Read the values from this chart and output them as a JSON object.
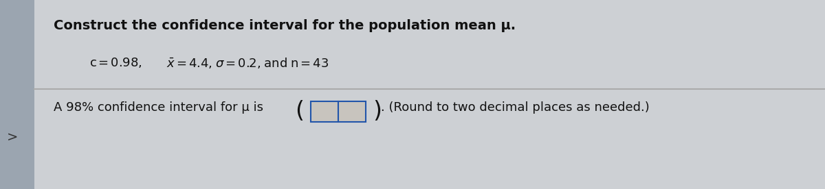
{
  "title": "Construct the confidence interval for the population mean μ.",
  "line1_part1": "c = 0.98, ",
  "line1_part2": "$\\bar{x}$ = 4.4, σ = 0.2, and n = 43",
  "line2_prefix": "A 98% confidence interval for μ is",
  "line2_suffix": ". (Round to two decimal places as needed.)",
  "bg_color": "#cdd0d4",
  "left_panel_color": "#9ba5b0",
  "text_color": "#111111",
  "title_fontsize": 14,
  "body_fontsize": 13,
  "box_color": "#c8c4be",
  "box_border_color": "#2255aa",
  "divider_color": "#aaaaaa",
  "arrow_color": "#444444"
}
